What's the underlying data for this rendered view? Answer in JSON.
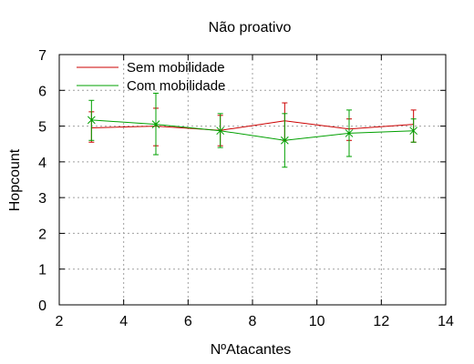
{
  "chart_data": {
    "type": "line",
    "title": "Não proativo",
    "xlabel": "NºAtacantes",
    "ylabel": "Hopcount",
    "xlim": [
      2,
      14
    ],
    "ylim": [
      0,
      7
    ],
    "xticks": [
      2,
      4,
      6,
      8,
      10,
      12,
      14
    ],
    "yticks": [
      0,
      1,
      2,
      3,
      4,
      5,
      6,
      7
    ],
    "grid": true,
    "legend_position": "top-left",
    "series": [
      {
        "name": "Sem mobilidade",
        "color": "#cc0000",
        "marker": "none",
        "x": [
          3,
          5,
          7,
          9,
          11,
          13
        ],
        "y": [
          4.95,
          5.0,
          4.88,
          5.15,
          4.92,
          5.05
        ],
        "err_low": [
          4.55,
          4.45,
          4.45,
          4.6,
          4.6,
          4.55
        ],
        "err_high": [
          5.4,
          5.5,
          5.3,
          5.65,
          5.2,
          5.45
        ]
      },
      {
        "name": "Com mobilidade",
        "color": "#00a000",
        "marker": "x",
        "x": [
          3,
          5,
          7,
          9,
          11,
          13
        ],
        "y": [
          5.17,
          5.05,
          4.87,
          4.6,
          4.8,
          4.87
        ],
        "err_low": [
          4.6,
          4.2,
          4.4,
          3.85,
          4.15,
          4.55
        ],
        "err_high": [
          5.72,
          5.92,
          5.35,
          5.35,
          5.45,
          5.2
        ]
      }
    ]
  }
}
